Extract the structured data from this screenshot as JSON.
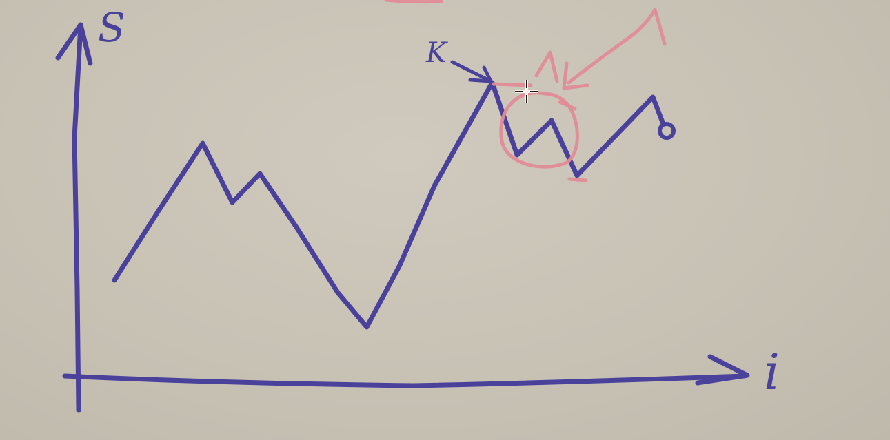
{
  "diagram": {
    "y_axis_label": "S",
    "x_axis_label": "i",
    "point_label": "K",
    "colors": {
      "ink": "#4a429a",
      "highlight": "#e08c96",
      "board": "#c9c3b6"
    },
    "icons": [
      "crosshair-cursor-icon"
    ]
  }
}
